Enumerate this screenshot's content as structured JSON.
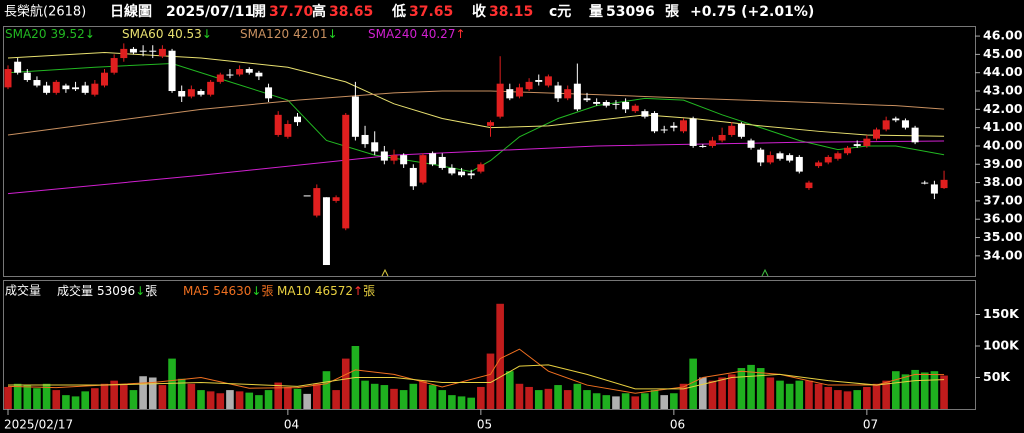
{
  "header": {
    "name": "長榮航(2618)",
    "period": "日線圖",
    "date": "2025/07/11",
    "quote": [
      {
        "label": "開",
        "value": "37.70"
      },
      {
        "label": "高",
        "value": "38.65"
      },
      {
        "label": "低",
        "value": "37.65"
      },
      {
        "label": "收",
        "value": "38.15"
      }
    ],
    "unit": "c元",
    "volume_label": "量",
    "volume": "53096",
    "volume_unit": "張",
    "change": "+0.75 (+2.01%)"
  },
  "chart_data": [
    {
      "type": "candlestick",
      "categories": [
        "2025/02/17",
        null,
        null,
        null,
        null,
        null,
        null,
        null,
        null,
        null,
        null,
        null,
        null,
        null,
        null,
        null,
        null,
        null,
        null,
        null,
        null,
        null,
        null,
        null,
        null,
        null,
        null,
        null,
        null,
        "04",
        null,
        null,
        null,
        null,
        null,
        null,
        null,
        null,
        null,
        null,
        null,
        null,
        null,
        null,
        null,
        null,
        null,
        null,
        null,
        "05",
        null,
        null,
        null,
        null,
        null,
        null,
        null,
        null,
        null,
        null,
        null,
        null,
        null,
        null,
        null,
        null,
        null,
        null,
        null,
        "06",
        null,
        null,
        null,
        null,
        null,
        null,
        null,
        null,
        null,
        null,
        null,
        null,
        null,
        null,
        null,
        null,
        null,
        null,
        null,
        "07",
        null,
        null,
        null,
        null,
        null,
        null,
        null,
        null
      ],
      "ohlc": [
        [
          43.2,
          44.4,
          43.1,
          44.2
        ],
        [
          44.6,
          44.8,
          43.9,
          44.0
        ],
        [
          44.0,
          44.2,
          43.5,
          43.6
        ],
        [
          43.6,
          43.8,
          43.2,
          43.3
        ],
        [
          43.3,
          43.5,
          42.8,
          42.9
        ],
        [
          42.9,
          43.6,
          42.8,
          43.5
        ],
        [
          43.3,
          43.4,
          42.9,
          43.1
        ],
        [
          43.2,
          43.5,
          43.0,
          43.1
        ],
        [
          43.3,
          43.5,
          42.8,
          42.9
        ],
        [
          42.8,
          43.6,
          42.7,
          43.4
        ],
        [
          43.3,
          44.2,
          43.2,
          44.0
        ],
        [
          44.0,
          45.0,
          43.9,
          44.8
        ],
        [
          44.8,
          45.6,
          44.6,
          45.3
        ],
        [
          45.3,
          45.4,
          45.0,
          45.1
        ],
        [
          45.2,
          45.5,
          44.9,
          45.2
        ],
        [
          45.2,
          45.5,
          44.8,
          45.2
        ],
        [
          44.9,
          45.5,
          44.8,
          45.3
        ],
        [
          45.2,
          45.3,
          42.9,
          43.0
        ],
        [
          43.0,
          43.3,
          42.4,
          42.7
        ],
        [
          42.7,
          43.3,
          42.6,
          43.1
        ],
        [
          43.0,
          43.1,
          42.7,
          42.8
        ],
        [
          42.8,
          43.6,
          42.7,
          43.5
        ],
        [
          43.5,
          44.0,
          43.4,
          43.9
        ],
        [
          43.9,
          44.2,
          43.7,
          43.9
        ],
        [
          43.9,
          44.4,
          43.8,
          44.2
        ],
        [
          44.2,
          44.3,
          43.9,
          44.0
        ],
        [
          44.0,
          44.1,
          43.6,
          43.8
        ],
        [
          43.2,
          43.4,
          42.4,
          42.6
        ],
        [
          40.6,
          41.9,
          40.5,
          41.7
        ],
        [
          40.5,
          41.4,
          40.4,
          41.2
        ],
        [
          41.6,
          41.8,
          41.1,
          41.3
        ],
        [
          37.3,
          37.3,
          37.3,
          37.3
        ],
        [
          36.2,
          37.9,
          36.1,
          37.7
        ],
        [
          37.2,
          37.2,
          33.5,
          33.5
        ],
        [
          37.0,
          37.3,
          36.9,
          37.2
        ],
        [
          35.5,
          41.8,
          35.4,
          41.7
        ],
        [
          42.7,
          43.5,
          40.3,
          40.5
        ],
        [
          40.6,
          41.1,
          39.9,
          40.1
        ],
        [
          40.2,
          40.8,
          39.5,
          39.7
        ],
        [
          39.7,
          40.0,
          39.0,
          39.2
        ],
        [
          39.2,
          39.8,
          39.0,
          39.5
        ],
        [
          39.5,
          39.6,
          38.8,
          39.0
        ],
        [
          38.8,
          39.0,
          37.6,
          37.8
        ],
        [
          38.0,
          39.6,
          37.9,
          39.5
        ],
        [
          39.6,
          39.7,
          38.9,
          39.0
        ],
        [
          39.4,
          39.6,
          38.7,
          38.8
        ],
        [
          38.8,
          39.0,
          38.4,
          38.5
        ],
        [
          38.6,
          38.8,
          38.3,
          38.4
        ],
        [
          38.5,
          38.7,
          38.2,
          38.4
        ],
        [
          38.6,
          39.1,
          38.5,
          39.0
        ],
        [
          41.1,
          41.4,
          40.5,
          41.3
        ],
        [
          41.6,
          44.9,
          41.5,
          43.4
        ],
        [
          43.1,
          43.4,
          42.5,
          42.6
        ],
        [
          42.7,
          43.4,
          42.6,
          43.2
        ],
        [
          43.1,
          43.7,
          43.0,
          43.5
        ],
        [
          43.6,
          43.9,
          43.3,
          43.5
        ],
        [
          43.3,
          43.9,
          43.2,
          43.8
        ],
        [
          43.3,
          43.5,
          42.4,
          42.6
        ],
        [
          42.6,
          43.3,
          42.5,
          43.1
        ],
        [
          43.4,
          44.5,
          41.9,
          42.0
        ],
        [
          42.6,
          42.9,
          42.4,
          42.5
        ],
        [
          42.4,
          42.6,
          42.2,
          42.3
        ],
        [
          42.4,
          42.5,
          42.1,
          42.2
        ],
        [
          42.3,
          42.5,
          42.0,
          42.3
        ],
        [
          42.4,
          42.6,
          41.8,
          42.0
        ],
        [
          41.9,
          42.3,
          41.8,
          42.2
        ],
        [
          41.9,
          42.0,
          41.5,
          41.6
        ],
        [
          41.8,
          41.9,
          40.7,
          40.8
        ],
        [
          40.9,
          41.1,
          40.7,
          40.9
        ],
        [
          41.1,
          41.3,
          40.8,
          41.0
        ],
        [
          40.8,
          41.5,
          40.7,
          41.4
        ],
        [
          41.5,
          41.6,
          39.9,
          40.0
        ],
        [
          40.0,
          40.1,
          39.9,
          40.0
        ],
        [
          40.0,
          40.5,
          39.9,
          40.3
        ],
        [
          40.3,
          41.0,
          40.2,
          40.6
        ],
        [
          40.6,
          41.3,
          40.5,
          41.1
        ],
        [
          41.2,
          41.3,
          40.4,
          40.5
        ],
        [
          40.3,
          40.4,
          39.8,
          39.9
        ],
        [
          39.8,
          39.9,
          38.9,
          39.1
        ],
        [
          39.1,
          39.7,
          39.0,
          39.5
        ],
        [
          39.6,
          39.7,
          39.2,
          39.3
        ],
        [
          39.5,
          39.6,
          39.1,
          39.2
        ],
        [
          39.4,
          39.5,
          38.5,
          38.6
        ],
        [
          37.7,
          38.1,
          37.6,
          38.0
        ],
        [
          38.9,
          39.2,
          38.8,
          39.1
        ],
        [
          39.1,
          39.5,
          39.0,
          39.4
        ],
        [
          39.3,
          39.7,
          39.2,
          39.6
        ],
        [
          39.6,
          40.0,
          39.5,
          39.9
        ],
        [
          40.1,
          40.3,
          39.9,
          40.0
        ],
        [
          40.0,
          40.6,
          39.9,
          40.4
        ],
        [
          40.4,
          41.0,
          40.3,
          40.9
        ],
        [
          40.9,
          41.6,
          40.8,
          41.4
        ],
        [
          41.5,
          41.6,
          41.3,
          41.4
        ],
        [
          41.4,
          41.5,
          40.9,
          41.0
        ],
        [
          41.0,
          41.1,
          40.1,
          40.2
        ],
        [
          38.0,
          38.1,
          37.9,
          37.95
        ],
        [
          37.9,
          38.1,
          37.1,
          37.4
        ],
        [
          37.7,
          38.65,
          37.65,
          38.15
        ]
      ],
      "up_color": "#e01f1f",
      "down_color": "#ffffff",
      "ylim": [
        32.9,
        46.55
      ],
      "yticks": [
        {
          "value": 34,
          "label": "34.00"
        },
        {
          "value": 35,
          "label": "35.00"
        },
        {
          "value": 36,
          "label": "36.00"
        },
        {
          "value": 37,
          "label": "37.00"
        },
        {
          "value": 38,
          "label": "38.00"
        },
        {
          "value": 39,
          "label": "39.00"
        },
        {
          "value": 40,
          "label": "40.00"
        },
        {
          "value": 41,
          "label": "41.00"
        },
        {
          "value": 42,
          "label": "42.00"
        },
        {
          "value": 43,
          "label": "43.00"
        },
        {
          "value": 44,
          "label": "44.00"
        },
        {
          "value": 45,
          "label": "45.00"
        },
        {
          "value": 46,
          "label": "46.00"
        }
      ],
      "series": [
        {
          "name": "SMA20",
          "color": "#22b822",
          "last": "39.52",
          "trend": "↓",
          "trend_color": "#22d022",
          "x": [
            0,
            9,
            17,
            23,
            29,
            33,
            38,
            44,
            48,
            50,
            53,
            57,
            61,
            66,
            70,
            74,
            78,
            82,
            86,
            89,
            92,
            97
          ],
          "values": [
            44.0,
            44.3,
            44.5,
            43.5,
            42.5,
            40.3,
            39.5,
            39.0,
            38.6,
            39.2,
            40.5,
            41.5,
            42.2,
            42.6,
            42.5,
            41.7,
            41.0,
            40.3,
            39.8,
            40.0,
            40.0,
            39.52
          ]
        },
        {
          "name": "SMA60",
          "color": "#e8e070",
          "last": "40.53",
          "trend": "↓",
          "trend_color": "#22d022",
          "x": [
            0,
            10,
            20,
            29,
            35,
            40,
            45,
            50,
            56,
            61,
            66,
            71,
            78,
            84,
            89,
            97
          ],
          "values": [
            44.8,
            45.1,
            44.8,
            44.3,
            43.5,
            42.3,
            41.5,
            41.0,
            41.1,
            41.4,
            41.7,
            41.5,
            41.1,
            40.8,
            40.6,
            40.53
          ]
        },
        {
          "name": "SMA120",
          "color": "#c89060",
          "last": "42.01",
          "trend": "↓",
          "trend_color": "#22d022",
          "x": [
            0,
            10,
            20,
            30,
            40,
            45,
            50,
            61,
            71,
            82,
            92,
            97
          ],
          "values": [
            40.6,
            41.3,
            42.0,
            42.5,
            42.9,
            43.0,
            43.0,
            42.8,
            42.6,
            42.4,
            42.2,
            42.01
          ]
        },
        {
          "name": "SMA240",
          "color": "#d020d0",
          "last": "40.27",
          "trend": "↑",
          "trend_color": "#ff3030",
          "x": [
            0,
            20,
            40,
            61,
            82,
            97
          ],
          "values": [
            37.4,
            38.4,
            39.5,
            40.0,
            40.2,
            40.27
          ]
        }
      ]
    },
    {
      "type": "bar",
      "title": "成交量",
      "label": "成交量",
      "last": "53096",
      "trend": "↓",
      "trend_color": "#22d022",
      "unit": "張",
      "up_color": "#c01c1c",
      "down_color": "#1fb01f",
      "flat_color": "#b0b0b0",
      "values": [
        35000,
        40000,
        38000,
        33000,
        40000,
        30000,
        22000,
        20000,
        28000,
        33000,
        40000,
        45000,
        38000,
        30000,
        52000,
        50000,
        38000,
        80000,
        48000,
        40000,
        30000,
        28000,
        25000,
        30000,
        28000,
        26000,
        22000,
        30000,
        42000,
        35000,
        32000,
        24000,
        40000,
        60000,
        30000,
        80000,
        100000,
        45000,
        40000,
        38000,
        32000,
        30000,
        40000,
        45000,
        38000,
        30000,
        22000,
        20000,
        18000,
        35000,
        88000,
        167000,
        60000,
        40000,
        35000,
        30000,
        32000,
        38000,
        30000,
        40000,
        30000,
        25000,
        22000,
        20000,
        25000,
        20000,
        25000,
        30000,
        22000,
        25000,
        40000,
        80000,
        50000,
        45000,
        50000,
        55000,
        65000,
        70000,
        65000,
        50000,
        45000,
        40000,
        45000,
        45000,
        40000,
        35000,
        30000,
        28000,
        30000,
        35000,
        40000,
        45000,
        60000,
        55000,
        62000,
        58000,
        60000,
        53096
      ],
      "ylim": [
        0,
        200000
      ],
      "yticks": [
        {
          "value": 50000,
          "label": "50K"
        },
        {
          "value": 100000,
          "label": "100K"
        },
        {
          "value": 150000,
          "label": "150K"
        }
      ],
      "series": [
        {
          "name": "MA5",
          "color": "#f07020",
          "last": "54630",
          "trend": "↓",
          "trend_color": "#22d022",
          "unit": "張",
          "x": [
            0,
            5,
            10,
            15,
            20,
            25,
            30,
            33,
            36,
            40,
            45,
            50,
            51,
            53,
            56,
            60,
            65,
            70,
            72,
            76,
            80,
            85,
            90,
            94,
            97
          ],
          "values": [
            36000,
            34000,
            38000,
            42000,
            50000,
            33000,
            34000,
            40000,
            62000,
            55000,
            35000,
            55000,
            80000,
            95000,
            60000,
            38000,
            25000,
            35000,
            50000,
            60000,
            55000,
            38000,
            38000,
            55000,
            54630
          ]
        },
        {
          "name": "MA10",
          "color": "#e8d040",
          "last": "46572",
          "trend": "↑",
          "trend_color": "#ff3030",
          "unit": "張",
          "x": [
            0,
            10,
            20,
            30,
            36,
            40,
            45,
            50,
            53,
            56,
            60,
            65,
            70,
            75,
            80,
            85,
            90,
            94,
            97
          ],
          "values": [
            38000,
            38000,
            42000,
            36000,
            50000,
            50000,
            42000,
            42000,
            68000,
            70000,
            55000,
            32000,
            32000,
            50000,
            55000,
            45000,
            38000,
            45000,
            46572
          ]
        }
      ]
    }
  ]
}
